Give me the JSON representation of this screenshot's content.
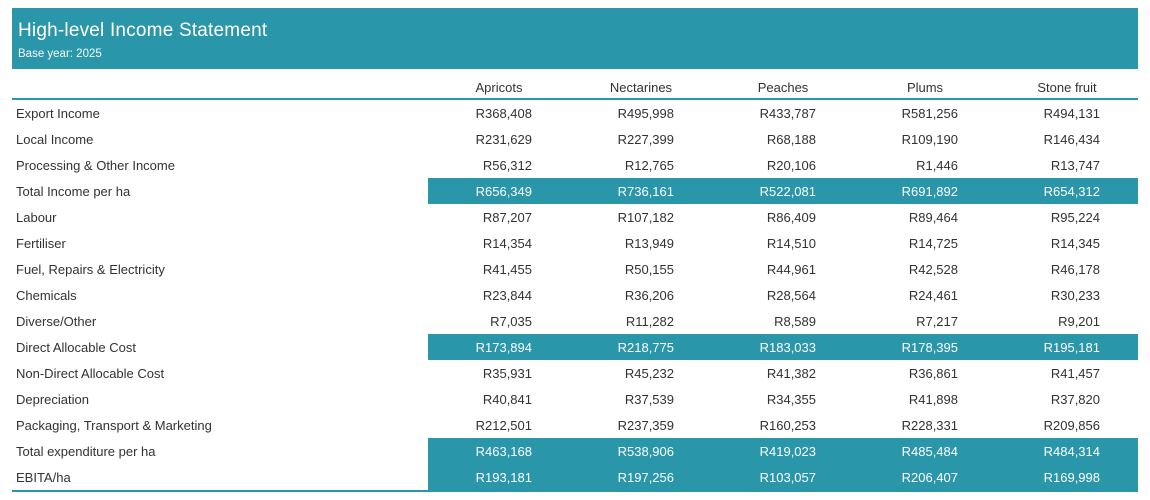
{
  "header": {
    "title": "High-level Income Statement",
    "subtitle": "Base year: 2025"
  },
  "colors": {
    "accent": "#2a96aa",
    "text": "#323232",
    "highlight_text": "#ffffff"
  },
  "chart_data": {
    "type": "table",
    "title": "High-level Income Statement",
    "subtitle": "Base year: 2025",
    "currency": "R",
    "columns": [
      "Apricots",
      "Nectarines",
      "Peaches",
      "Plums",
      "Stone fruit"
    ],
    "rows": [
      {
        "label": "Export Income",
        "highlight": false,
        "values": [
          "R368,408",
          "R495,998",
          "R433,787",
          "R581,256",
          "R494,131"
        ]
      },
      {
        "label": "Local Income",
        "highlight": false,
        "values": [
          "R231,629",
          "R227,399",
          "R68,188",
          "R109,190",
          "R146,434"
        ]
      },
      {
        "label": "Processing & Other Income",
        "highlight": false,
        "values": [
          "R56,312",
          "R12,765",
          "R20,106",
          "R1,446",
          "R13,747"
        ]
      },
      {
        "label": "Total Income per ha",
        "highlight": true,
        "values": [
          "R656,349",
          "R736,161",
          "R522,081",
          "R691,892",
          "R654,312"
        ]
      },
      {
        "label": "Labour",
        "highlight": false,
        "values": [
          "R87,207",
          "R107,182",
          "R86,409",
          "R89,464",
          "R95,224"
        ]
      },
      {
        "label": "Fertiliser",
        "highlight": false,
        "values": [
          "R14,354",
          "R13,949",
          "R14,510",
          "R14,725",
          "R14,345"
        ]
      },
      {
        "label": "Fuel, Repairs & Electricity",
        "highlight": false,
        "values": [
          "R41,455",
          "R50,155",
          "R44,961",
          "R42,528",
          "R46,178"
        ]
      },
      {
        "label": "Chemicals",
        "highlight": false,
        "values": [
          "R23,844",
          "R36,206",
          "R28,564",
          "R24,461",
          "R30,233"
        ]
      },
      {
        "label": "Diverse/Other",
        "highlight": false,
        "values": [
          "R7,035",
          "R11,282",
          "R8,589",
          "R7,217",
          "R9,201"
        ]
      },
      {
        "label": "Direct Allocable Cost",
        "highlight": true,
        "values": [
          "R173,894",
          "R218,775",
          "R183,033",
          "R178,395",
          "R195,181"
        ]
      },
      {
        "label": "Non-Direct Allocable Cost",
        "highlight": false,
        "values": [
          "R35,931",
          "R45,232",
          "R41,382",
          "R36,861",
          "R41,457"
        ]
      },
      {
        "label": "Depreciation",
        "highlight": false,
        "values": [
          "R40,841",
          "R37,539",
          "R34,355",
          "R41,898",
          "R37,820"
        ]
      },
      {
        "label": "Packaging, Transport & Marketing",
        "highlight": false,
        "values": [
          "R212,501",
          "R237,359",
          "R160,253",
          "R228,331",
          "R209,856"
        ]
      },
      {
        "label": "Total expenditure per ha",
        "highlight": true,
        "values": [
          "R463,168",
          "R538,906",
          "R419,023",
          "R485,484",
          "R484,314"
        ]
      },
      {
        "label": "EBITA/ha",
        "highlight": true,
        "values": [
          "R193,181",
          "R197,256",
          "R103,057",
          "R206,407",
          "R169,998"
        ]
      }
    ]
  }
}
